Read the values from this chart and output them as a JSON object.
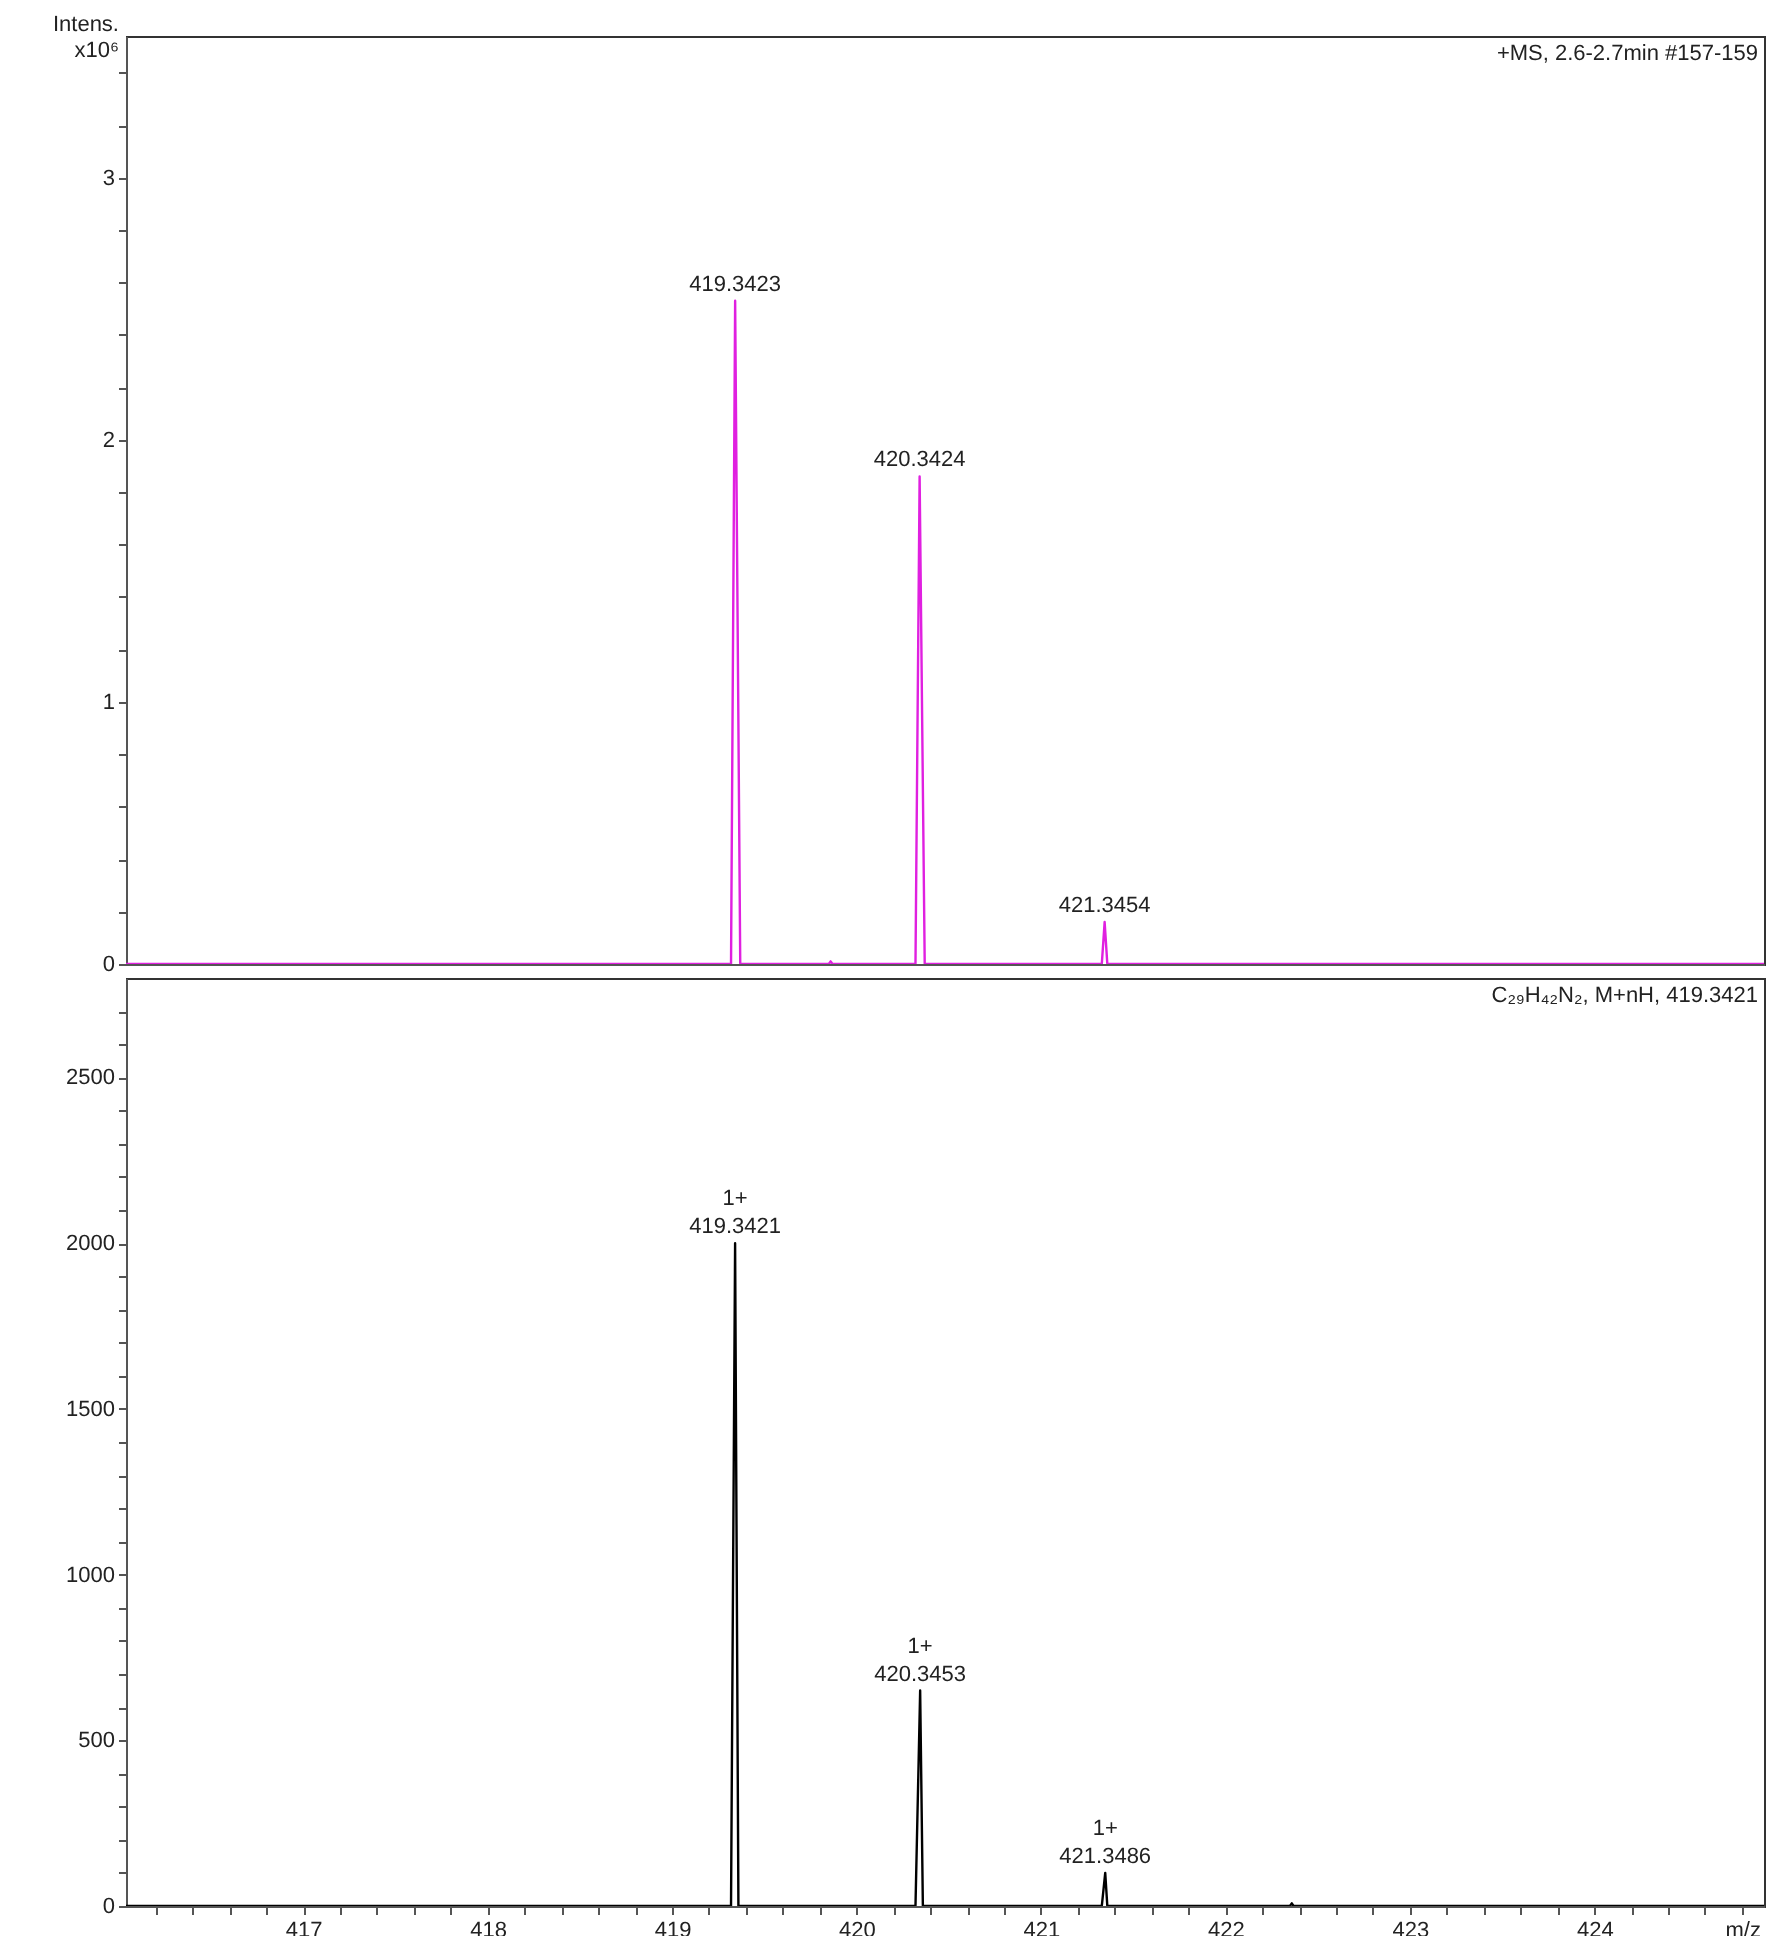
{
  "chart_data": [
    {
      "type": "line",
      "ylabel": "Intens.\nx10⁶",
      "annotations": [
        "+MS, 2.6-2.7min #157-159",
        {
          "text": "419.3423",
          "x": 419.3423,
          "y": 2.53
        },
        {
          "text": "420.3424",
          "x": 420.3424,
          "y": 1.86
        },
        {
          "text": "421.3454",
          "x": 421.3454,
          "y": 0.16
        }
      ],
      "xlim": [
        416.04,
        424.92
      ],
      "ylim": [
        0,
        3.54
      ],
      "tick_labels": "y",
      "yticks": [
        0,
        {
          "value": 0.2,
          "label": null
        },
        {
          "value": 0.4,
          "label": null
        },
        {
          "value": 0.6,
          "label": null
        },
        {
          "value": 0.8,
          "label": null
        },
        1,
        {
          "value": 1.2,
          "label": null
        },
        {
          "value": 1.4,
          "label": null
        },
        {
          "value": 1.6,
          "label": null
        },
        {
          "value": 1.8,
          "label": null
        },
        2,
        {
          "value": 2.2,
          "label": null
        },
        {
          "value": 2.4,
          "label": null
        },
        {
          "value": 2.6,
          "label": null
        },
        {
          "value": 2.8,
          "label": null
        },
        3,
        {
          "value": 3.2,
          "label": null
        },
        {
          "value": 3.4,
          "label": null
        }
      ],
      "series": [
        {
          "color": "#e020e0",
          "x": [
            416.04,
            419.32,
            419.3423,
            419.37,
            419.85,
            419.86,
            419.87,
            420.32,
            420.3424,
            420.37,
            421.33,
            421.3454,
            421.36,
            424.92
          ],
          "values": [
            0,
            0,
            2.53,
            0,
            0,
            0.01,
            0,
            0,
            1.86,
            0,
            0,
            0.16,
            0,
            0
          ]
        }
      ]
    },
    {
      "type": "line",
      "xlabel": "m/z",
      "annotations": [
        "C₂₉H₄₂N₂, M+nH, 419.3421",
        {
          "text": "1+\n419.3421",
          "x": 419.3421,
          "y": 2000
        },
        {
          "text": "1+\n420.3453",
          "x": 420.3453,
          "y": 650
        },
        {
          "text": "1+\n421.3486",
          "x": 421.3486,
          "y": 100
        }
      ],
      "xlim": [
        416.04,
        424.92
      ],
      "ylim": [
        0,
        2800
      ],
      "xticks": [
        {
          "value": 416.2,
          "label": null
        },
        {
          "value": 416.4,
          "label": null
        },
        {
          "value": 416.6,
          "label": null
        },
        {
          "value": 416.8,
          "label": null
        },
        417,
        {
          "value": 417.2,
          "label": null
        },
        {
          "value": 417.4,
          "label": null
        },
        {
          "value": 417.6,
          "label": null
        },
        {
          "value": 417.8,
          "label": null
        },
        418,
        {
          "value": 418.2,
          "label": null
        },
        {
          "value": 418.4,
          "label": null
        },
        {
          "value": 418.6,
          "label": null
        },
        {
          "value": 418.8,
          "label": null
        },
        419,
        {
          "value": 419.2,
          "label": null
        },
        {
          "value": 419.4,
          "label": null
        },
        {
          "value": 419.6,
          "label": null
        },
        {
          "value": 419.8,
          "label": null
        },
        420,
        {
          "value": 420.2,
          "label": null
        },
        {
          "value": 420.4,
          "label": null
        },
        {
          "value": 420.6,
          "label": null
        },
        {
          "value": 420.8,
          "label": null
        },
        421,
        {
          "value": 421.2,
          "label": null
        },
        {
          "value": 421.4,
          "label": null
        },
        {
          "value": 421.6,
          "label": null
        },
        {
          "value": 421.8,
          "label": null
        },
        422,
        {
          "value": 422.2,
          "label": null
        },
        {
          "value": 422.4,
          "label": null
        },
        {
          "value": 422.6,
          "label": null
        },
        {
          "value": 422.8,
          "label": null
        },
        423,
        {
          "value": 423.2,
          "label": null
        },
        {
          "value": 423.4,
          "label": null
        },
        {
          "value": 423.6,
          "label": null
        },
        {
          "value": 423.8,
          "label": null
        },
        424,
        {
          "value": 424.2,
          "label": null
        },
        {
          "value": 424.4,
          "label": null
        },
        {
          "value": 424.6,
          "label": null
        },
        {
          "value": 424.8,
          "label": null
        }
      ],
      "yticks": [
        0,
        {
          "value": 100,
          "label": null
        },
        {
          "value": 200,
          "label": null
        },
        {
          "value": 300,
          "label": null
        },
        {
          "value": 400,
          "label": null
        },
        500,
        {
          "value": 600,
          "label": null
        },
        {
          "value": 700,
          "label": null
        },
        {
          "value": 800,
          "label": null
        },
        {
          "value": 900,
          "label": null
        },
        1000,
        {
          "value": 1100,
          "label": null
        },
        {
          "value": 1200,
          "label": null
        },
        {
          "value": 1300,
          "label": null
        },
        {
          "value": 1400,
          "label": null
        },
        1500,
        {
          "value": 1600,
          "label": null
        },
        {
          "value": 1700,
          "label": null
        },
        {
          "value": 1800,
          "label": null
        },
        {
          "value": 1900,
          "label": null
        },
        2000,
        {
          "value": 2100,
          "label": null
        },
        {
          "value": 2200,
          "label": null
        },
        {
          "value": 2300,
          "label": null
        },
        {
          "value": 2400,
          "label": null
        },
        2500,
        {
          "value": 2600,
          "label": null
        },
        {
          "value": 2700,
          "label": null
        }
      ],
      "series": [
        {
          "color": "#000000",
          "x": [
            416.04,
            419.32,
            419.3421,
            419.36,
            420.32,
            420.3453,
            420.36,
            421.33,
            421.3486,
            421.36,
            422.35,
            422.36,
            422.37,
            424.92
          ],
          "values": [
            0,
            0,
            2000,
            0,
            0,
            650,
            0,
            0,
            100,
            0,
            0,
            8,
            0,
            0
          ]
        }
      ]
    }
  ]
}
